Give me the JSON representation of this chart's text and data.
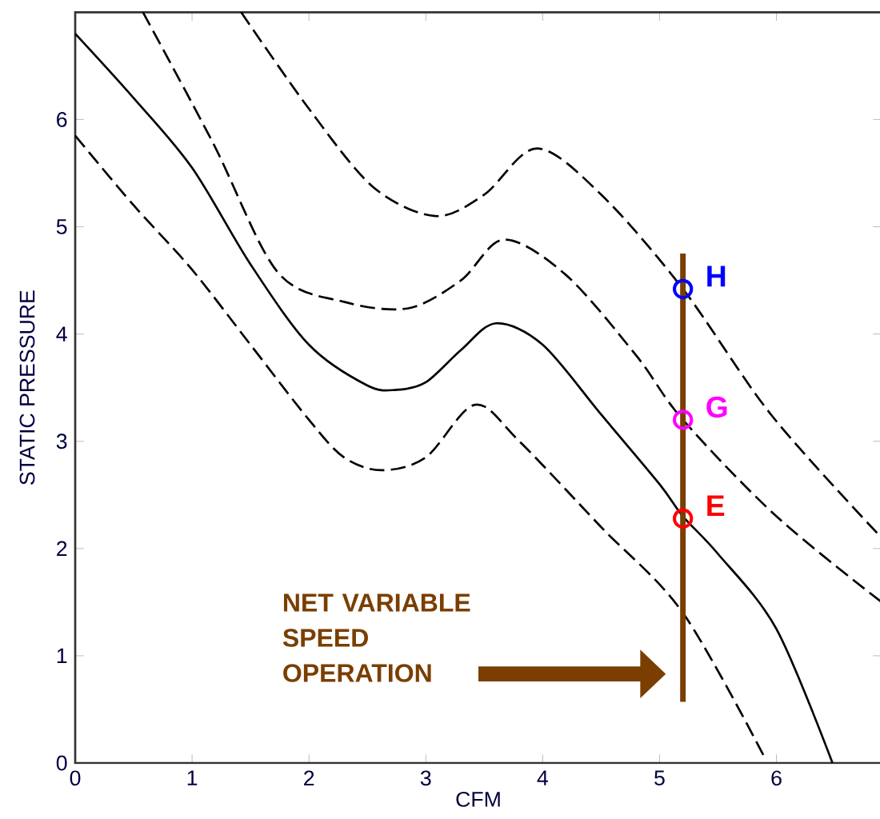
{
  "chart_data": {
    "type": "line",
    "xlabel": "CFM",
    "ylabel": "STATIC PRESSURE",
    "xlim": [
      0,
      6.9
    ],
    "ylim": [
      0,
      7
    ],
    "xticks": [
      0,
      1,
      2,
      3,
      4,
      5,
      6
    ],
    "yticks": [
      0,
      1,
      2,
      3,
      4,
      5,
      6
    ],
    "annotations": [
      "NET VARIABLE SPEED OPERATION"
    ],
    "series": [
      {
        "color": "#000000",
        "line_style": "dashed",
        "x": [
          0,
          0.5,
          1,
          1.5,
          2,
          2.3,
          2.62,
          3,
          3.42,
          3.8,
          4.5,
          5.2,
          5.9
        ],
        "values": [
          5.85,
          5.2,
          4.6,
          3.9,
          3.2,
          2.85,
          2.73,
          2.85,
          3.34,
          3.0,
          2.2,
          1.4,
          0.05
        ]
      },
      {
        "color": "#000000",
        "line_style": "solid",
        "x": [
          0,
          0.5,
          1,
          1.5,
          2,
          2.5,
          2.75,
          3,
          3.3,
          3.6,
          4,
          4.5,
          5,
          5.2,
          5.5,
          6,
          6.48
        ],
        "values": [
          6.8,
          6.2,
          5.55,
          4.65,
          3.9,
          3.52,
          3.48,
          3.55,
          3.85,
          4.1,
          3.9,
          3.25,
          2.6,
          2.3,
          1.95,
          1.25,
          0
        ]
      },
      {
        "color": "#000000",
        "line_style": "dashed",
        "x": [
          0.58,
          1.18,
          1.73,
          2.3,
          2.85,
          3.3,
          3.67,
          4.2,
          4.8,
          5.2,
          6,
          6.9
        ],
        "values": [
          7,
          5.78,
          4.58,
          4.3,
          4.24,
          4.5,
          4.88,
          4.55,
          3.8,
          3.2,
          2.3,
          1.5
        ]
      },
      {
        "color": "#000000",
        "line_style": "dashed",
        "x": [
          1.42,
          2,
          2.55,
          3.08,
          3.5,
          3.95,
          4.5,
          5.2,
          5.96,
          6.9
        ],
        "values": [
          7,
          6.1,
          5.37,
          5.1,
          5.3,
          5.73,
          5.3,
          4.42,
          3.24,
          2.1
        ]
      },
      {
        "type": "line",
        "color": "#7a3e00",
        "line_style": "solid",
        "x": [
          5.2,
          5.2
        ],
        "values": [
          0.57,
          4.75
        ]
      },
      {
        "type": "scatter",
        "name": "H",
        "color": "#0000ff",
        "marker": "circle",
        "x": [
          5.2
        ],
        "values": [
          4.42
        ]
      },
      {
        "type": "scatter",
        "name": "G",
        "color": "#ff00ff",
        "marker": "circle",
        "x": [
          5.2
        ],
        "values": [
          3.2
        ]
      },
      {
        "type": "scatter",
        "name": "E",
        "color": "#ff0000",
        "marker": "circle",
        "x": [
          5.2
        ],
        "values": [
          2.28
        ]
      }
    ]
  }
}
